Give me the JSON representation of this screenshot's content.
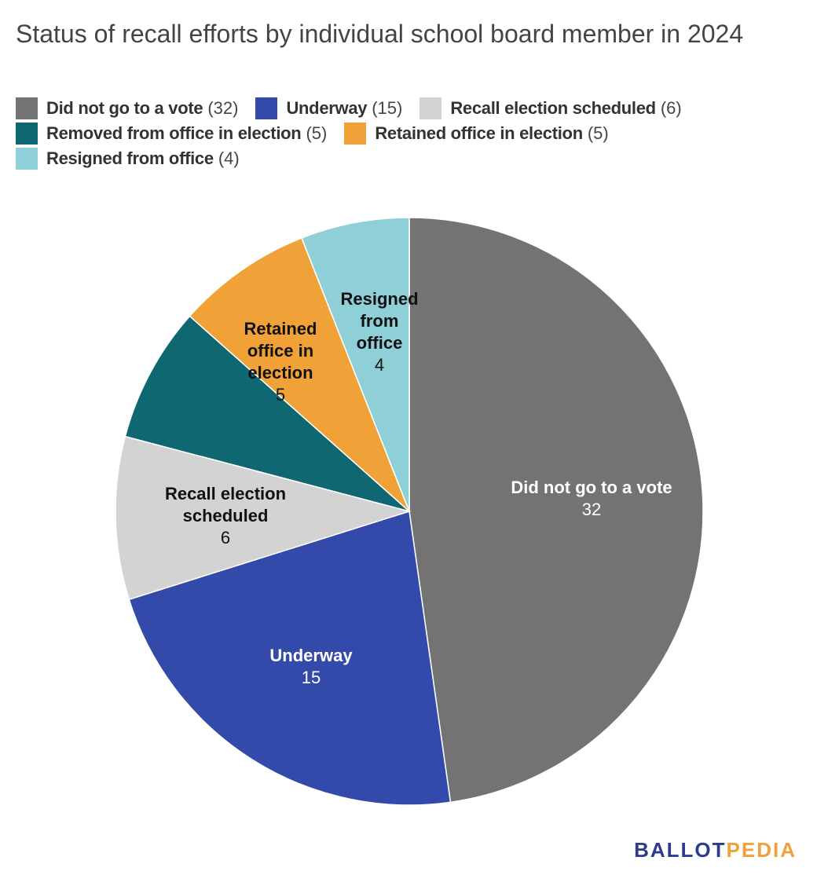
{
  "title": "Status of recall efforts by individual school board member in 2024",
  "logo": {
    "part1": "BALLOT",
    "part2": "PEDIA"
  },
  "chart_data": {
    "type": "pie",
    "title": "Status of recall efforts by individual school board member in 2024",
    "legend_placement": "top",
    "slices": [
      {
        "label": "Did not go to a vote",
        "value": 32,
        "count_text": "(32)",
        "color": "#737373",
        "text_color": "#ffffff",
        "label_lines": [
          "Did not go to a vote"
        ]
      },
      {
        "label": "Underway",
        "value": 15,
        "count_text": "(15)",
        "color": "#344aab",
        "text_color": "#ffffff",
        "label_lines": [
          "Underway"
        ]
      },
      {
        "label": "Recall election scheduled",
        "value": 6,
        "count_text": "(6)",
        "color": "#d3d3d3",
        "text_color": "#111111",
        "label_lines": [
          "Recall election",
          "scheduled"
        ]
      },
      {
        "label": "Removed from office in election",
        "value": 5,
        "count_text": "(5)",
        "color": "#0e6771",
        "text_color": "#ffffff",
        "label_lines": []
      },
      {
        "label": "Retained office in election",
        "value": 5,
        "count_text": "(5)",
        "color": "#f0a238",
        "text_color": "#111111",
        "label_lines": [
          "Retained",
          "office in",
          "election"
        ]
      },
      {
        "label": "Resigned from office",
        "value": 4,
        "count_text": "(4)",
        "color": "#8ecfd8",
        "text_color": "#111111",
        "label_lines": [
          "Resigned",
          "from",
          "office"
        ]
      }
    ]
  }
}
